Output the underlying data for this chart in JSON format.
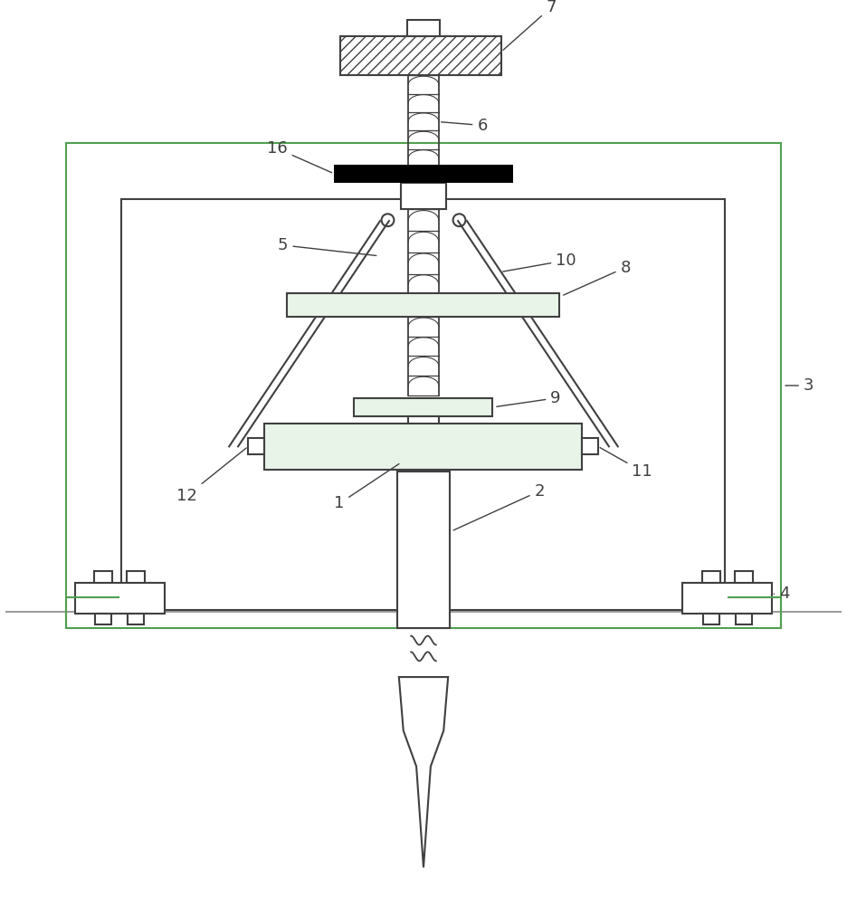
{
  "bg_color": "#ffffff",
  "line_color": "#404040",
  "line_width": 1.5,
  "green_color": "#50a050",
  "label_color": "#404040",
  "label_fontsize": 13
}
